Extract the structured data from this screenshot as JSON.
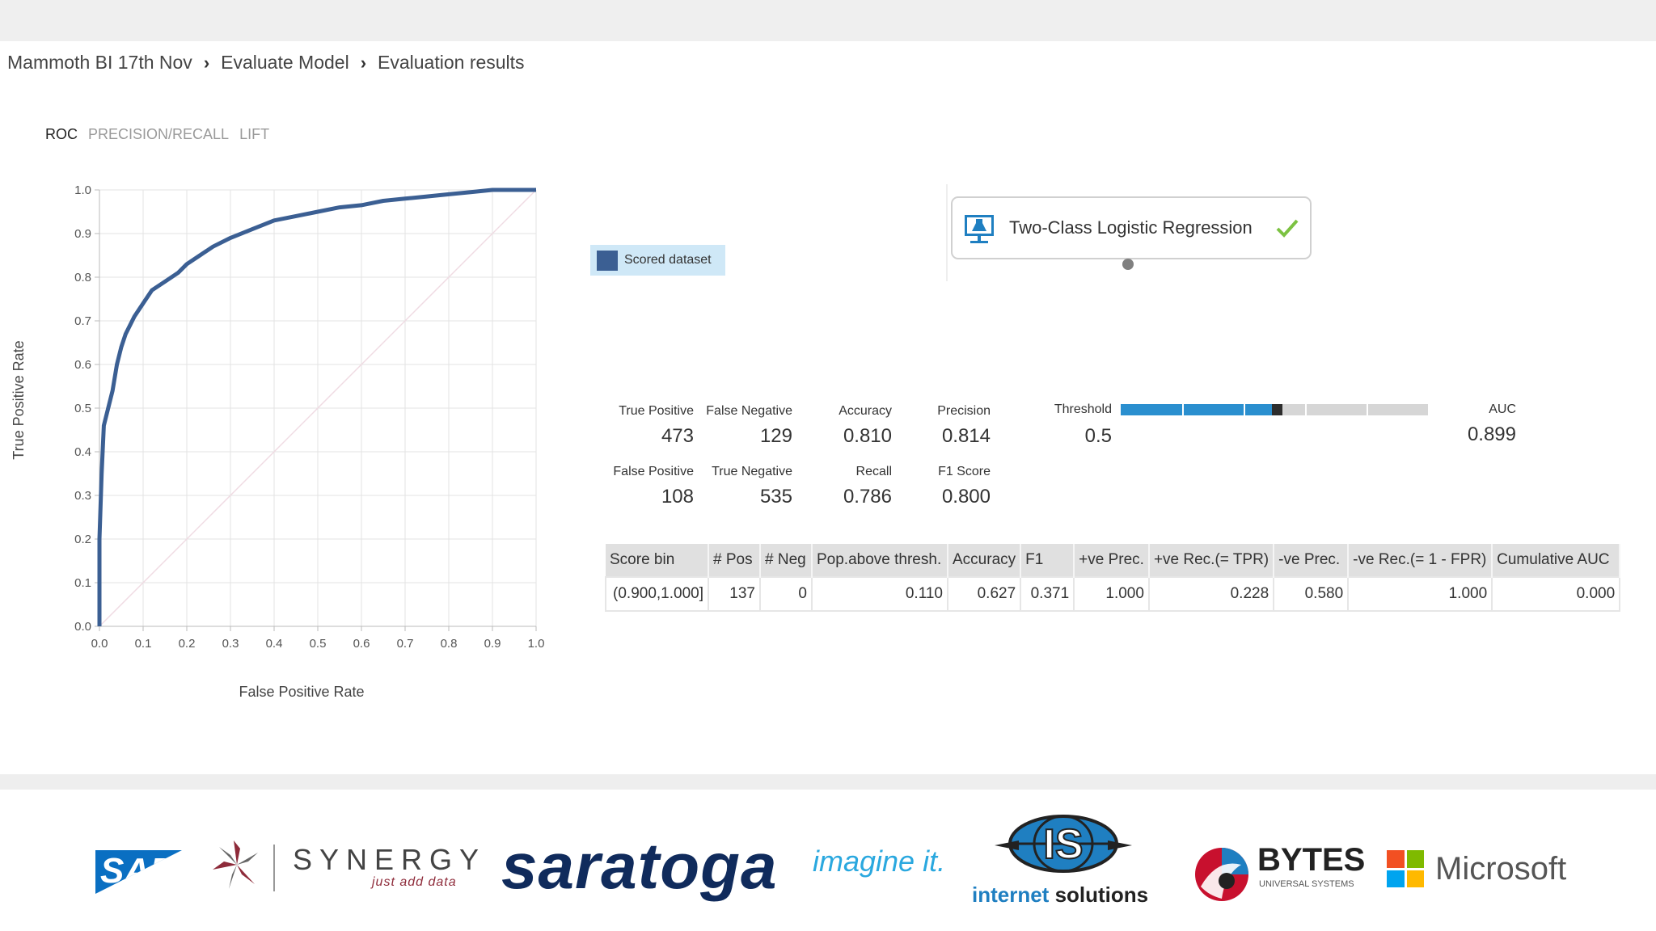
{
  "breadcrumb": [
    "Mammoth BI 17th Nov",
    "Evaluate Model",
    "Evaluation results"
  ],
  "tabs": [
    {
      "label": "ROC",
      "active": true
    },
    {
      "label": "PRECISION/RECALL",
      "active": false
    },
    {
      "label": "LIFT",
      "active": false
    }
  ],
  "chart_data": {
    "type": "line",
    "xlabel": "False Positive Rate",
    "ylabel": "True Positive Rate",
    "xlim": [
      0.0,
      1.0
    ],
    "ylim": [
      0.0,
      1.0
    ],
    "x_ticks": [
      "0.0",
      "0.1",
      "0.2",
      "0.3",
      "0.4",
      "0.5",
      "0.6",
      "0.7",
      "0.8",
      "0.9",
      "1.0"
    ],
    "y_ticks": [
      "0.0",
      "0.1",
      "0.2",
      "0.3",
      "0.4",
      "0.5",
      "0.6",
      "0.7",
      "0.8",
      "0.9",
      "1.0"
    ],
    "grid": true,
    "series": [
      {
        "name": "Scored dataset",
        "color": "#3b5f93",
        "x": [
          0.0,
          0.0,
          0.005,
          0.01,
          0.02,
          0.03,
          0.04,
          0.05,
          0.06,
          0.08,
          0.1,
          0.12,
          0.15,
          0.18,
          0.2,
          0.23,
          0.26,
          0.3,
          0.35,
          0.4,
          0.45,
          0.5,
          0.55,
          0.6,
          0.65,
          0.7,
          0.75,
          0.8,
          0.85,
          0.9,
          0.95,
          1.0
        ],
        "y": [
          0.0,
          0.2,
          0.35,
          0.46,
          0.5,
          0.54,
          0.6,
          0.64,
          0.67,
          0.71,
          0.74,
          0.77,
          0.79,
          0.81,
          0.83,
          0.85,
          0.87,
          0.89,
          0.91,
          0.93,
          0.94,
          0.95,
          0.96,
          0.965,
          0.975,
          0.98,
          0.985,
          0.99,
          0.995,
          1.0,
          1.0,
          1.0
        ]
      },
      {
        "name": "",
        "color": "#f0dbe3",
        "x": [
          0.0,
          1.0
        ],
        "y": [
          0.0,
          1.0
        ]
      }
    ]
  },
  "legend": {
    "label": "Scored dataset",
    "color": "#3b5f93"
  },
  "module": {
    "title": "Two-Class Logistic Regression",
    "status": "check-icon"
  },
  "metrics": {
    "true_positive": {
      "label": "True Positive",
      "value": "473"
    },
    "false_negative": {
      "label": "False Negative",
      "value": "129"
    },
    "accuracy": {
      "label": "Accuracy",
      "value": "0.810"
    },
    "precision": {
      "label": "Precision",
      "value": "0.814"
    },
    "false_positive": {
      "label": "False Positive",
      "value": "108"
    },
    "true_negative": {
      "label": "True Negative",
      "value": "535"
    },
    "recall": {
      "label": "Recall",
      "value": "0.786"
    },
    "f1_score": {
      "label": "F1 Score",
      "value": "0.800"
    }
  },
  "threshold": {
    "label": "Threshold",
    "value": "0.5",
    "fraction": 0.5
  },
  "auc": {
    "label": "AUC",
    "value": "0.899"
  },
  "bins_table": {
    "headers": [
      "Score bin",
      "# Pos",
      "# Neg",
      "Pop.above thresh.",
      "Accuracy",
      "F1",
      "+ve Prec.",
      "+ve Rec.(= TPR)",
      "-ve Prec.",
      "-ve Rec.(= 1 - FPR)",
      "Cumulative AUC"
    ],
    "rows": [
      [
        "(0.900,1.000]",
        "137",
        "0",
        "0.110",
        "0.627",
        "0.371",
        "1.000",
        "0.228",
        "0.580",
        "1.000",
        "0.000"
      ]
    ]
  },
  "logos": {
    "sap": "SAP",
    "synergy": "SYNERGY",
    "synergy_tag": "just add data",
    "saratoga": "saratoga",
    "imagine": "imagine it.",
    "is_mark": "IS",
    "is_text_1": "internet",
    "is_text_2": "solutions",
    "bytes": "BYTES",
    "bytes_sub": "UNIVERSAL SYSTEMS",
    "microsoft": "Microsoft",
    "microsoft_colors": [
      "#f25022",
      "#7fba00",
      "#00a4ef",
      "#ffb900"
    ]
  }
}
